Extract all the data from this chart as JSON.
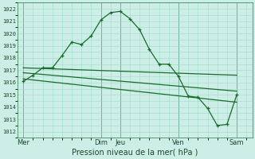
{
  "bg_color": "#cceee6",
  "grid_color": "#99ddcc",
  "line_color": "#1a6b2a",
  "title": "Pression niveau de la mer( hPa )",
  "ylim": [
    1011.5,
    1022.5
  ],
  "yticks": [
    1012,
    1013,
    1014,
    1015,
    1016,
    1017,
    1018,
    1019,
    1020,
    1021,
    1022
  ],
  "xlabel_color": "#1a4a2a",
  "day_labels": [
    "Mer",
    "Dim",
    "Jeu",
    "Ven",
    "Sam"
  ],
  "day_positions": [
    0,
    4,
    5,
    8,
    11
  ],
  "vline_positions": [
    0,
    4,
    5,
    8,
    11
  ],
  "xlim": [
    -0.3,
    11.8
  ],
  "forecast_x": [
    0,
    0.5,
    1,
    1.5,
    2,
    2.5,
    3,
    3.5,
    4,
    4.5,
    5,
    5.5,
    6,
    6.5,
    7,
    7.5,
    8,
    8.5,
    9,
    9.5,
    10,
    10.5,
    11
  ],
  "forecast_y": [
    1016.1,
    1016.6,
    1017.2,
    1017.2,
    1018.2,
    1019.3,
    1019.1,
    1019.8,
    1021.1,
    1021.7,
    1021.8,
    1021.2,
    1020.3,
    1018.7,
    1017.5,
    1017.5,
    1016.5,
    1014.9,
    1014.8,
    1013.9,
    1012.5,
    1012.6,
    1015.0
  ],
  "trend1_x": [
    0,
    11
  ],
  "trend1_y": [
    1017.2,
    1016.6
  ],
  "trend2_x": [
    0,
    11
  ],
  "trend2_y": [
    1016.8,
    1015.3
  ],
  "trend3_x": [
    0,
    11
  ],
  "trend3_y": [
    1016.3,
    1014.4
  ],
  "title_fontsize": 7,
  "tick_fontsize": 5,
  "xtick_fontsize": 6
}
